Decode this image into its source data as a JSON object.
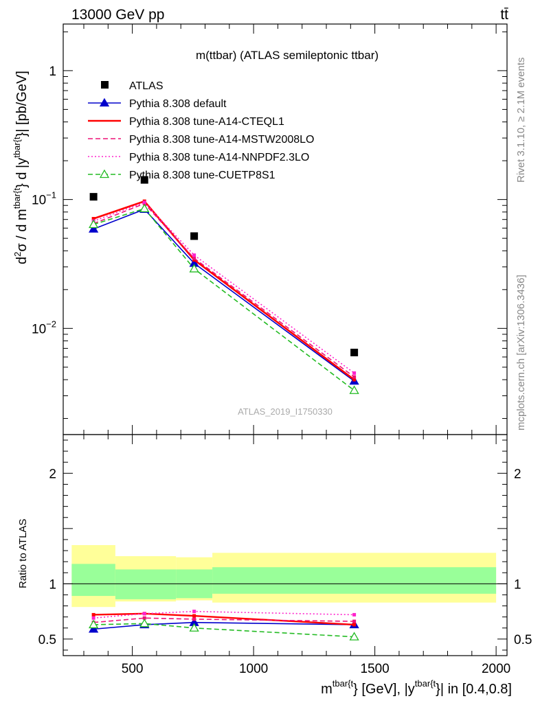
{
  "header": {
    "left": "13000 GeV pp",
    "right": "tt̄"
  },
  "side_labels": {
    "rivet": "Rivet 3.1.10, ≥ 2.1M events",
    "mcplots": "mcplots.cern.ch [arXiv:1306.3436]"
  },
  "chart_data": {
    "type": "line",
    "title": "m(ttbar) (ATLAS semileptonic ttbar)",
    "watermark": "ATLAS_2019_I1750330",
    "upper": {
      "ylabel": "d²σ / d m^{tbar{t}} d |y^{tbar{t}}| [pb/GeV]",
      "ylabel_parts": {
        "prefix": "d",
        "sup2": "2",
        "sigma": "σ /  d m",
        "sup_a": "tbar{t",
        "mid": "} d |y",
        "sup_b": "tbar{t",
        "suffix": "}| [pb/GeV]"
      },
      "yscale": "log",
      "ylim": [
        0.0015,
        2.3
      ],
      "yticks": [
        {
          "value": 1,
          "label": "1"
        },
        {
          "value": 0.1,
          "label": "10^-1",
          "base": "10",
          "exp": "−1"
        },
        {
          "value": 0.01,
          "label": "10^-2",
          "base": "10",
          "exp": "−2"
        }
      ],
      "legend_position": "top-left",
      "data": {
        "name": "ATLAS",
        "x": [
          340,
          550,
          755,
          1415
        ],
        "y": [
          0.105,
          0.142,
          0.052,
          0.0065
        ]
      },
      "series": [
        {
          "name": "Pythia 8.308 default",
          "color": "#0000cc",
          "dash": "solid",
          "marker": "triangle-filled",
          "x": [
            340,
            550,
            755,
            1415
          ],
          "y": [
            0.059,
            0.084,
            0.032,
            0.0039
          ]
        },
        {
          "name": "Pythia 8.308 tune-A14-CTEQL1",
          "color": "#ff0000",
          "dash": "solid",
          "marker": "square-small",
          "x": [
            340,
            550,
            755,
            1415
          ],
          "y": [
            0.071,
            0.097,
            0.034,
            0.004
          ]
        },
        {
          "name": "Pythia 8.308 tune-A14-MSTW2008LO",
          "color": "#ee1177",
          "dash": "dashed",
          "marker": "square-small",
          "x": [
            340,
            550,
            755,
            1415
          ],
          "y": [
            0.065,
            0.093,
            0.035,
            0.0042
          ]
        },
        {
          "name": "Pythia 8.308 tune-A14-NNPDF2.3LO",
          "color": "#ff22cc",
          "dash": "dotted",
          "marker": "square-small",
          "x": [
            340,
            550,
            755,
            1415
          ],
          "y": [
            0.068,
            0.095,
            0.037,
            0.0045
          ]
        },
        {
          "name": "Pythia 8.308 tune-CUETP8S1",
          "color": "#22bb22",
          "dash": "dashed",
          "marker": "triangle-open",
          "x": [
            340,
            550,
            755,
            1415
          ],
          "y": [
            0.064,
            0.085,
            0.029,
            0.0033
          ]
        }
      ]
    },
    "lower": {
      "ylabel": "Ratio to ATLAS",
      "ylim": [
        0.35,
        2.35
      ],
      "yticks": [
        {
          "value": 0.5,
          "label": "0.5"
        },
        {
          "value": 1,
          "label": "1"
        },
        {
          "value": 2,
          "label": "2"
        }
      ],
      "bands": [
        {
          "x0": 250,
          "x1": 430,
          "inner": [
            0.89,
            1.18
          ],
          "outer": [
            0.79,
            1.35
          ]
        },
        {
          "x0": 430,
          "x1": 680,
          "inner": [
            0.86,
            1.13
          ],
          "outer": [
            0.84,
            1.25
          ]
        },
        {
          "x0": 680,
          "x1": 830,
          "inner": [
            0.87,
            1.13
          ],
          "outer": [
            0.85,
            1.24
          ]
        },
        {
          "x0": 830,
          "x1": 2000,
          "inner": [
            0.91,
            1.15
          ],
          "outer": [
            0.83,
            1.28
          ]
        }
      ],
      "series": [
        {
          "name": "Pythia 8.308 default",
          "y": [
            0.59,
            0.63,
            0.65,
            0.63
          ]
        },
        {
          "name": "Pythia 8.308 tune-A14-CTEQL1",
          "y": [
            0.72,
            0.73,
            0.71,
            0.63
          ]
        },
        {
          "name": "Pythia 8.308 tune-A14-MSTW2008LO",
          "y": [
            0.65,
            0.69,
            0.68,
            0.66
          ]
        },
        {
          "name": "Pythia 8.308 tune-A14-NNPDF2.3LO",
          "y": [
            0.69,
            0.73,
            0.75,
            0.72
          ]
        },
        {
          "name": "Pythia 8.308 tune-CUETP8S1",
          "y": [
            0.63,
            0.64,
            0.6,
            0.52
          ]
        }
      ]
    },
    "x": {
      "xlabel": "m^{tbar{t}} [GeV], |y^{tbar{t}}| in [0.4,0.8]",
      "xlabel_parts": {
        "a": "m",
        "sup_a": "tbar{t",
        "b": "} [GeV], |y",
        "sup_b": "tbar{t",
        "c": "}| in [0.4,0.8]"
      },
      "xlim": [
        215,
        2045
      ],
      "xticks": [
        {
          "value": 500,
          "label": "500"
        },
        {
          "value": 1000,
          "label": "1000"
        },
        {
          "value": 1500,
          "label": "1500"
        },
        {
          "value": 2000,
          "label": "2000"
        }
      ]
    }
  }
}
